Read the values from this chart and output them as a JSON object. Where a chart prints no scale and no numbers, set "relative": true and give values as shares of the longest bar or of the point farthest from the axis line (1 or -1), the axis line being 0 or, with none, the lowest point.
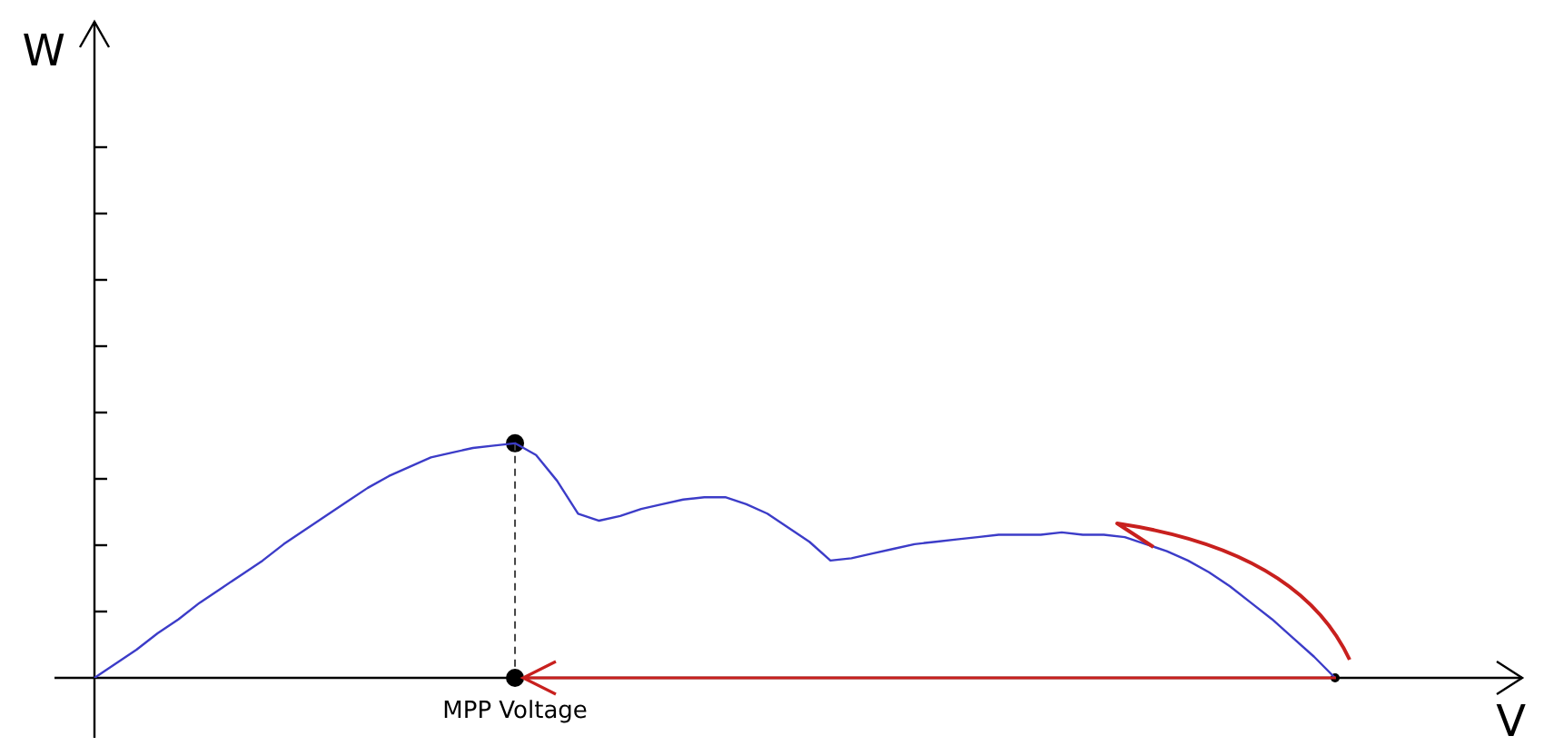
{
  "chart_data": {
    "type": "line",
    "relative": true,
    "xlabel": "V",
    "annotations": [
      "W",
      {
        "text": "MPP Voltage",
        "y": 0
      }
    ],
    "legend": false,
    "marker": "none",
    "categories": [
      null,
      null,
      null,
      null,
      null,
      null,
      null,
      null,
      null,
      null,
      null,
      null,
      null,
      null,
      null,
      null,
      null,
      null,
      null,
      null,
      null,
      null,
      null,
      null,
      null,
      null,
      null,
      null,
      null,
      null,
      null,
      null,
      null,
      null,
      null,
      null,
      null,
      null,
      null,
      null,
      null,
      null,
      null,
      null,
      null,
      null,
      null,
      null,
      null,
      null,
      null,
      null,
      null,
      null,
      null,
      null,
      null,
      null,
      null,
      null
    ],
    "series": [
      {
        "color": "#3c3cc8",
        "values": [
          0,
          0.06,
          0.12,
          0.19,
          0.25,
          0.32,
          0.38,
          0.44,
          0.5,
          0.57,
          0.63,
          0.69,
          0.75,
          0.81,
          0.86,
          0.9,
          0.94,
          0.96,
          0.98,
          0.99,
          1,
          0.95,
          0.84,
          0.7,
          0.67,
          0.69,
          0.72,
          0.74,
          0.76,
          0.77,
          0.77,
          0.74,
          0.7,
          0.64,
          0.58,
          0.5,
          0.51,
          0.53,
          0.55,
          0.57,
          0.58,
          0.59,
          0.6,
          0.61,
          0.61,
          0.61,
          0.62,
          0.61,
          0.61,
          0.6,
          0.57,
          0.54,
          0.5,
          0.45,
          0.39,
          0.32,
          0.25,
          0.17,
          0.09,
          0
        ]
      }
    ]
  }
}
